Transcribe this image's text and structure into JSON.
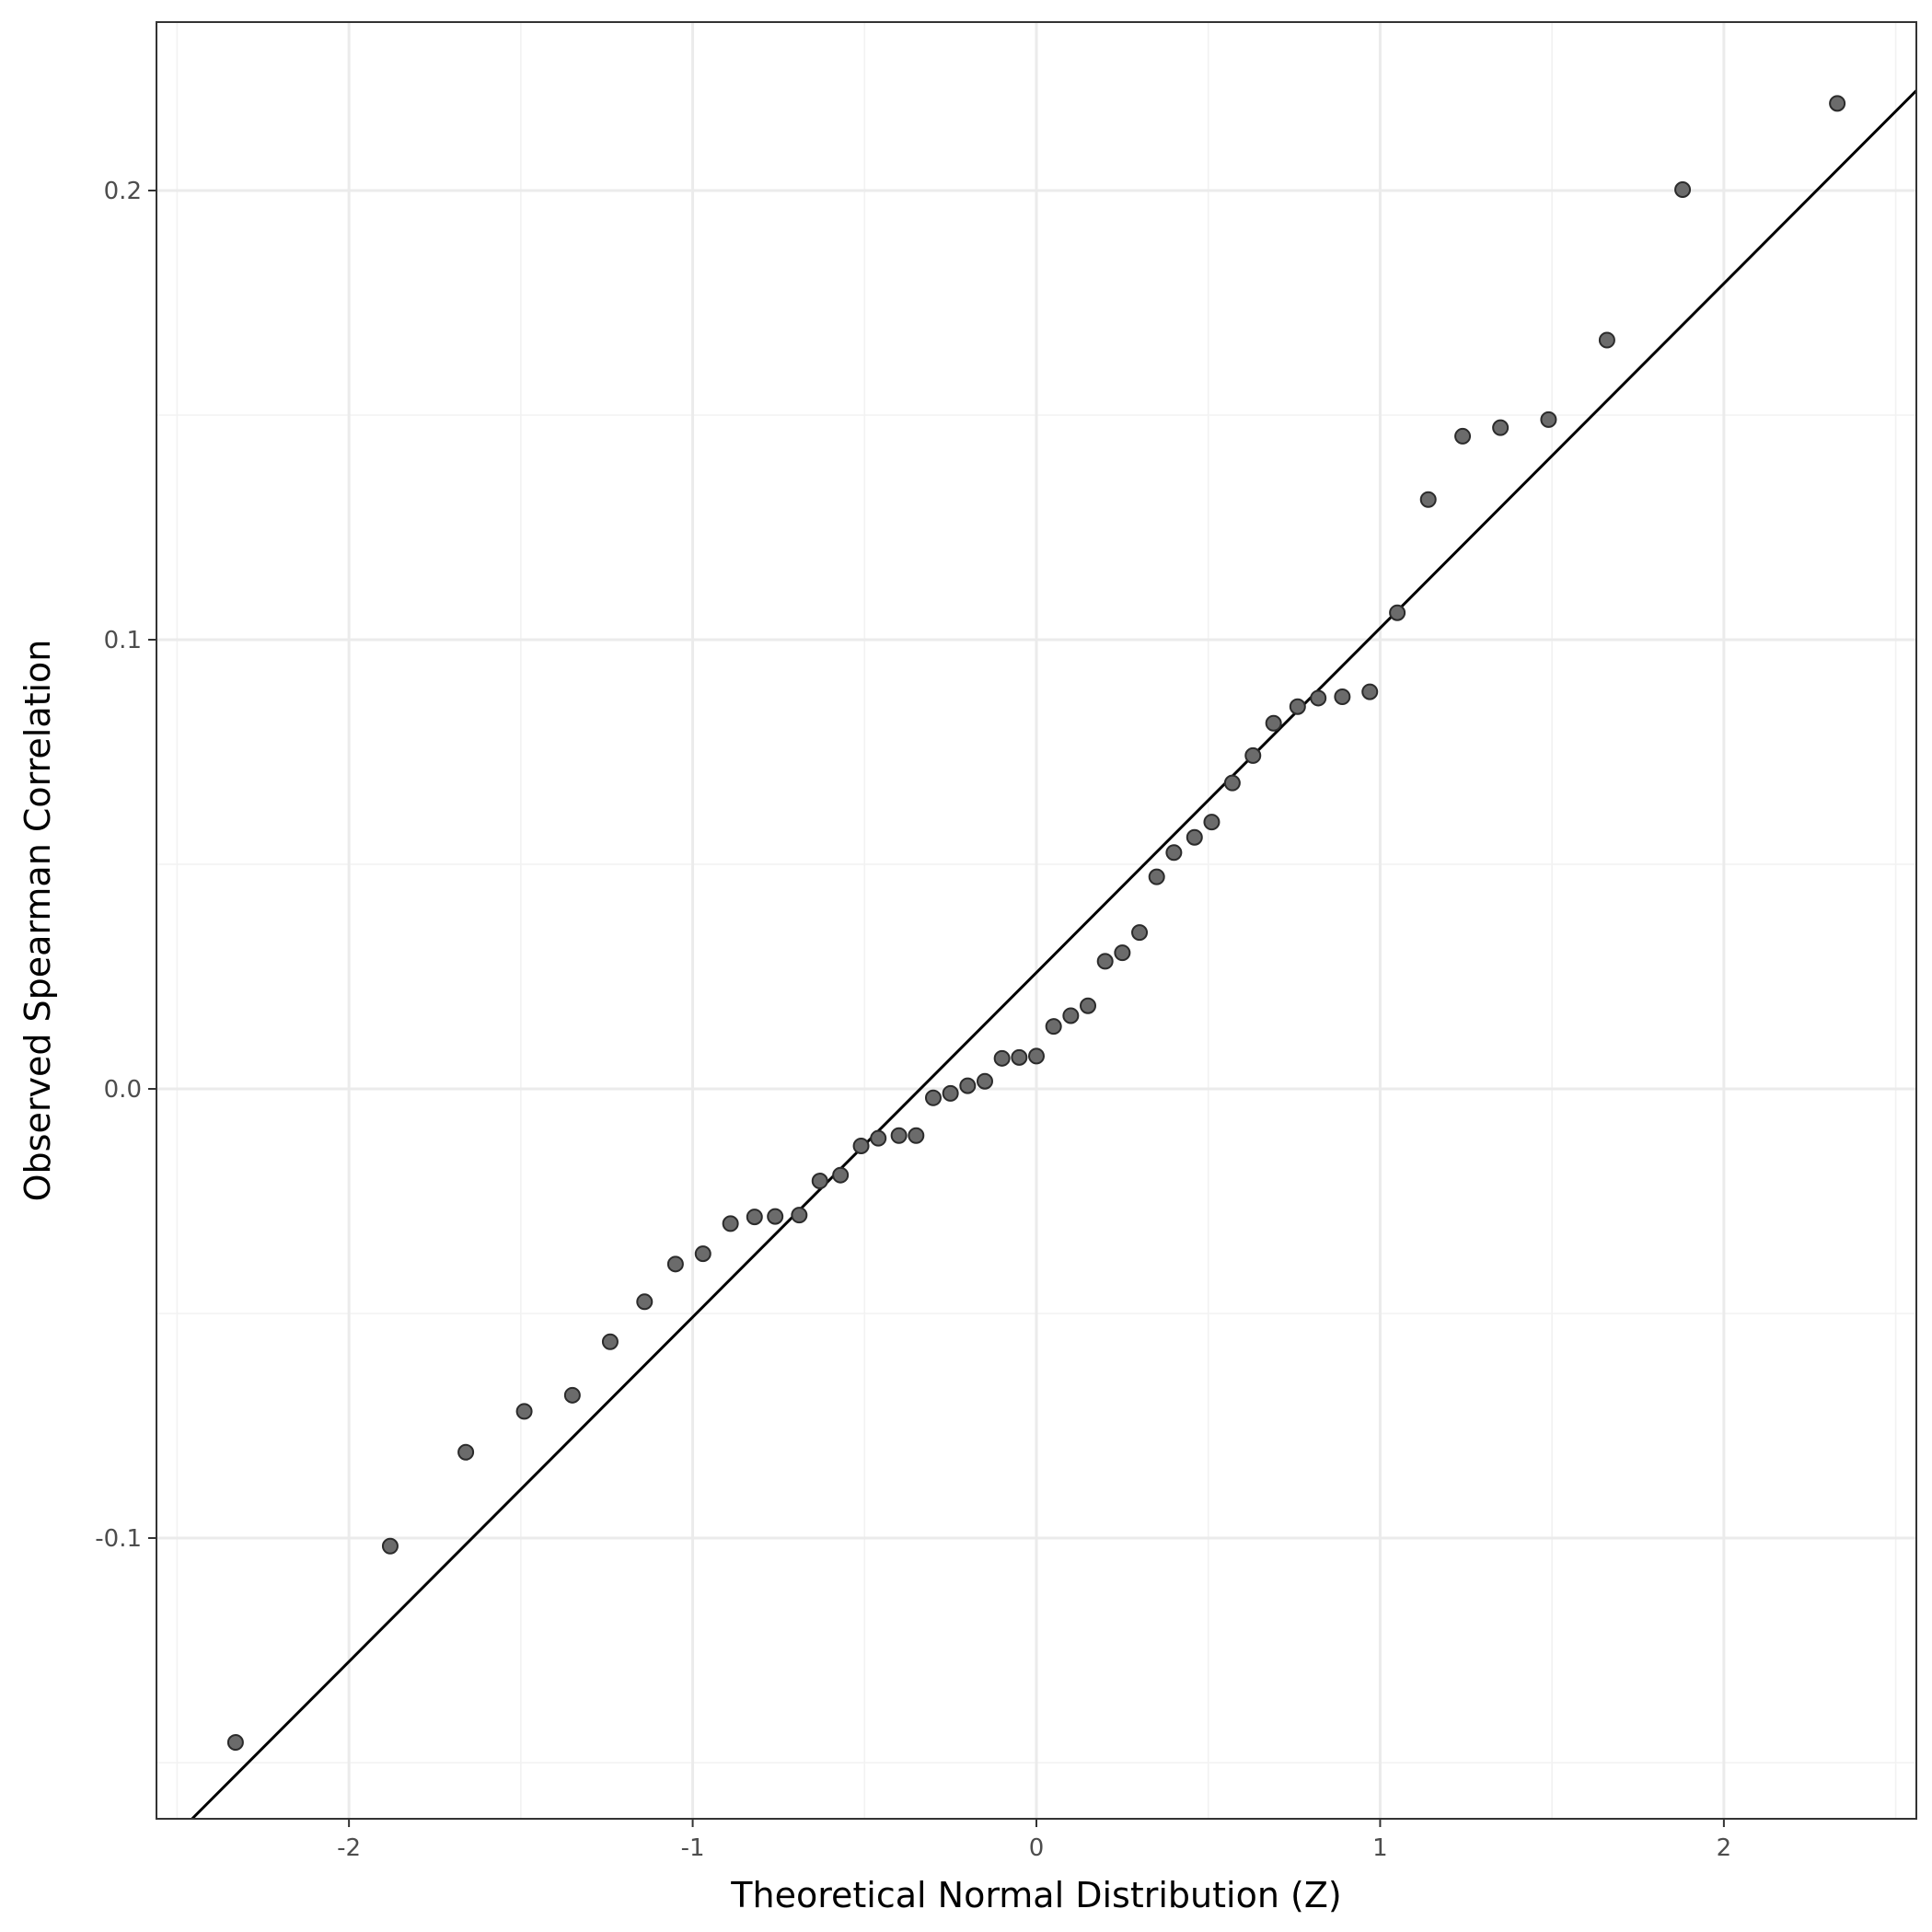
{
  "chart_data": {
    "type": "scatter",
    "title": "",
    "xlabel": "Theoretical Normal Distribution (Z)",
    "ylabel": "Observed Spearman Correlation",
    "xlim": [
      -2.56,
      2.56
    ],
    "ylim": [
      -0.1625,
      0.2375
    ],
    "x_ticks": [
      -2,
      -1,
      0,
      1,
      2
    ],
    "x_tick_labels": [
      "-2",
      "-1",
      "0",
      "1",
      "2"
    ],
    "y_ticks": [
      -0.1,
      0.0,
      0.1,
      0.2
    ],
    "y_tick_labels": [
      "-0.1",
      "0.0",
      "0.1",
      "0.2"
    ],
    "grid": true,
    "colors": {
      "point_fill": "#6b6b6b",
      "point_stroke": "#2b2b2b",
      "line": "#000000",
      "grid": "#ebebeb"
    },
    "reference_line": {
      "intercept": 0.0259,
      "slope": 0.0767
    },
    "points": {
      "x": [
        -2.33,
        -1.88,
        -1.66,
        -1.49,
        -1.35,
        -1.24,
        -1.14,
        -1.05,
        -0.97,
        -0.89,
        -0.82,
        -0.76,
        -0.69,
        -0.63,
        -0.57,
        -0.51,
        -0.46,
        -0.4,
        -0.35,
        -0.3,
        -0.25,
        -0.2,
        -0.15,
        -0.1,
        -0.05,
        0.0,
        0.05,
        0.1,
        0.15,
        0.2,
        0.25,
        0.3,
        0.35,
        0.4,
        0.46,
        0.51,
        0.57,
        0.63,
        0.69,
        0.76,
        0.82,
        0.89,
        0.97,
        1.05,
        1.14,
        1.24,
        1.35,
        1.49,
        1.66,
        1.88,
        2.33
      ],
      "y": [
        -0.1455,
        -0.1018,
        -0.0809,
        -0.0718,
        -0.0682,
        -0.0563,
        -0.0474,
        -0.039,
        -0.0367,
        -0.03,
        -0.0285,
        -0.0284,
        -0.0281,
        -0.0205,
        -0.0192,
        -0.0127,
        -0.011,
        -0.0104,
        -0.0104,
        -0.002,
        -0.001,
        0.0007,
        0.0017,
        0.0068,
        0.007,
        0.0073,
        0.0139,
        0.0163,
        0.0185,
        0.0284,
        0.0303,
        0.0348,
        0.0472,
        0.0526,
        0.056,
        0.0594,
        0.0681,
        0.0742,
        0.0814,
        0.0851,
        0.087,
        0.0873,
        0.0884,
        0.106,
        0.1312,
        0.1453,
        0.1472,
        0.149,
        0.1667,
        0.2002,
        0.2194
      ]
    }
  }
}
